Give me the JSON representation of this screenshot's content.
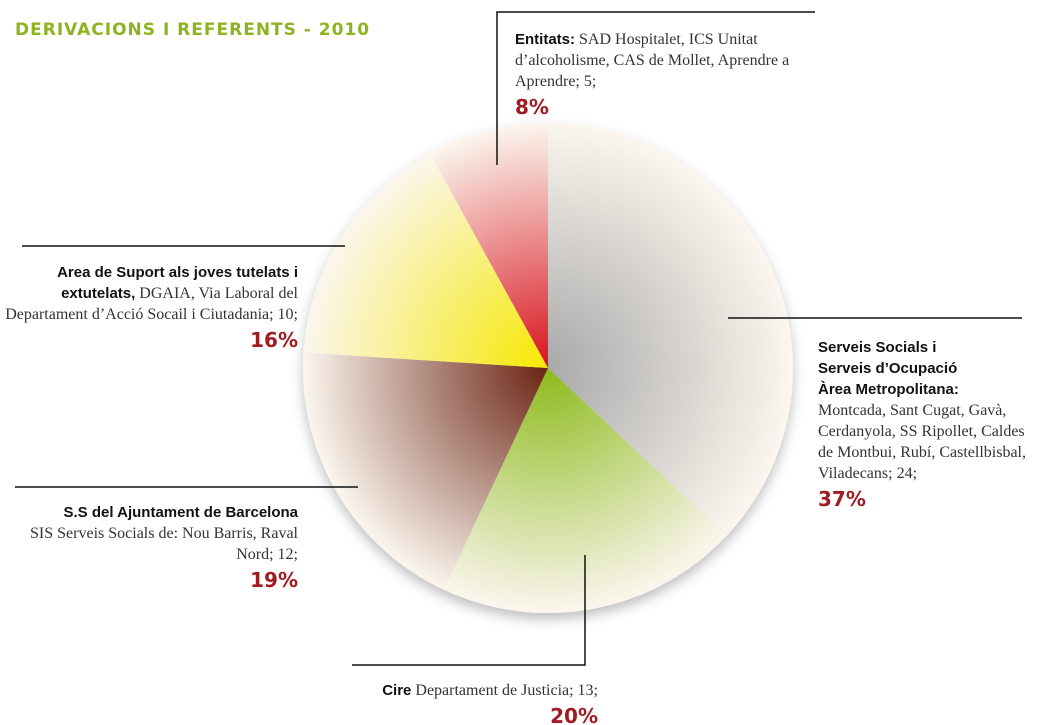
{
  "chart_data": {
    "type": "pie",
    "title": "DERIVACIONS I REFERENTS - 2010",
    "categories": [
      "Serveis Socials i Serveis d’Ocupació Àrea Metropolitana:",
      "Cire",
      "S.S del Ajuntament de Barcelona",
      "Area de Suport als joves tutelats i extutelats,",
      "Entitats:"
    ],
    "descriptions": [
      "Montcada, Sant Cugat, Gavà, Cerdanyola, SS Ripollet, Caldes de Montbui, Rubí, Castellbisbal, Viladecans; 24;",
      "Departament de Justicia; 13;",
      "SIS Serveis Socials de: Nou Barris, Raval Nord; 12;",
      "DGAIA, Via Laboral del Departament d’Acció Socail i Ciutadania; 10;",
      "SAD Hospitalet, ICS Unitat d’alcoholisme, CAS de Mollet, Aprendre a Aprendre; 5;"
    ],
    "values": [
      37,
      20,
      19,
      16,
      8
    ],
    "value_labels": [
      "37%",
      "20%",
      "19%",
      "16%",
      "8%"
    ],
    "colors": [
      "#a9a9a9",
      "#8dba1c",
      "#6a2313",
      "#f6e800",
      "#d8121c"
    ]
  }
}
